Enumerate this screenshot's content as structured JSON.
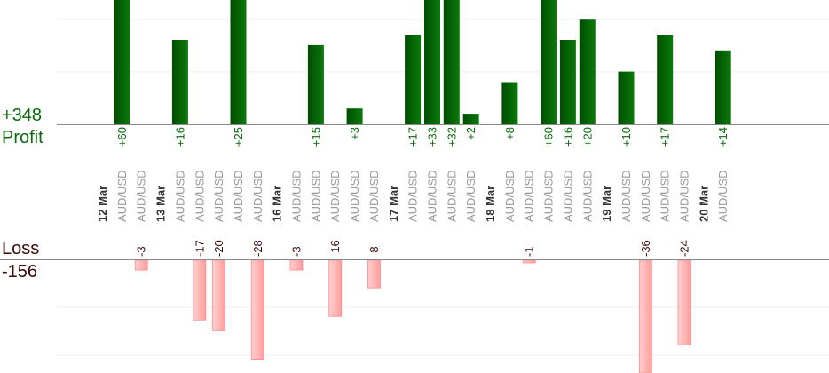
{
  "summary": {
    "profit_total": "+348",
    "profit_label": "Profit",
    "loss_label": "Loss",
    "loss_total": "-156"
  },
  "colors": {
    "profit_bar_dark": "#004d00",
    "profit_bar_light": "#0b7a0b",
    "profit_text": "#0a6b0a",
    "loss_bar_light": "#ffd0d0",
    "loss_bar_dark": "#ff9d9d",
    "loss_bar_border": "#ff8a8a",
    "loss_text": "#3a0a0a",
    "date_text": "#333333",
    "symbol_text": "#999999",
    "axis_line": "#8a8a8a",
    "grid_line": "#eeeeee"
  },
  "chart_data": {
    "type": "bar",
    "title": "",
    "columns": [
      {
        "label": "12 Mar",
        "kind": "date"
      },
      {
        "label": "AUD/USD",
        "kind": "trade",
        "profit": 60
      },
      {
        "label": "AUD/USD",
        "kind": "trade",
        "loss": -3
      },
      {
        "label": "13 Mar",
        "kind": "date"
      },
      {
        "label": "AUD/USD",
        "kind": "trade",
        "profit": 16
      },
      {
        "label": "AUD/USD",
        "kind": "trade",
        "loss": -17
      },
      {
        "label": "AUD/USD",
        "kind": "trade",
        "loss": -20
      },
      {
        "label": "AUD/USD",
        "kind": "trade",
        "profit": 25
      },
      {
        "label": "AUD/USD",
        "kind": "trade",
        "loss": -28
      },
      {
        "label": "16 Mar",
        "kind": "date"
      },
      {
        "label": "AUD/USD",
        "kind": "trade",
        "loss": -3
      },
      {
        "label": "AUD/USD",
        "kind": "trade",
        "profit": 15
      },
      {
        "label": "AUD/USD",
        "kind": "trade",
        "loss": -16
      },
      {
        "label": "AUD/USD",
        "kind": "trade",
        "profit": 3
      },
      {
        "label": "AUD/USD",
        "kind": "trade",
        "loss": -8
      },
      {
        "label": "17 Mar",
        "kind": "date"
      },
      {
        "label": "AUD/USD",
        "kind": "trade",
        "profit": 17
      },
      {
        "label": "AUD/USD",
        "kind": "trade",
        "profit": 33
      },
      {
        "label": "AUD/USD",
        "kind": "trade",
        "profit": 32
      },
      {
        "label": "AUD/USD",
        "kind": "trade",
        "profit": 2
      },
      {
        "label": "18 Mar",
        "kind": "date"
      },
      {
        "label": "AUD/USD",
        "kind": "trade",
        "profit": 8
      },
      {
        "label": "AUD/USD",
        "kind": "trade",
        "loss": -1
      },
      {
        "label": "AUD/USD",
        "kind": "trade",
        "profit": 60
      },
      {
        "label": "AUD/USD",
        "kind": "trade",
        "profit": 16
      },
      {
        "label": "AUD/USD",
        "kind": "trade",
        "profit": 20
      },
      {
        "label": "19 Mar",
        "kind": "date"
      },
      {
        "label": "AUD/USD",
        "kind": "trade",
        "profit": 10
      },
      {
        "label": "AUD/USD",
        "kind": "trade",
        "loss": -36
      },
      {
        "label": "AUD/USD",
        "kind": "trade",
        "profit": 17
      },
      {
        "label": "AUD/USD",
        "kind": "trade",
        "loss": -24
      },
      {
        "label": "20 Mar",
        "kind": "date"
      },
      {
        "label": "AUD/USD",
        "kind": "trade",
        "profit": 14
      }
    ],
    "profit_axis": {
      "max_visible": 25,
      "grid": true
    },
    "loss_axis": {
      "max_visible": 28,
      "grid": true
    },
    "legend": "none"
  }
}
